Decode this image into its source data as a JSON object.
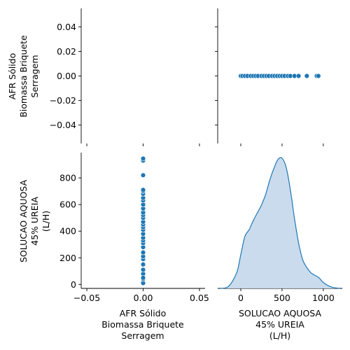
{
  "chart_data": {
    "type": "pairplot",
    "variables": [
      [
        "AFR Sólido",
        "Biomassa Briquete",
        "Serragem"
      ],
      [
        "SOLUCAO AQUOSA",
        "45% UREIA",
        "(L/H)"
      ]
    ],
    "colors": {
      "points": "#1f77b4",
      "kde_fill": "#c6d9ec",
      "kde_line": "#1f77b4",
      "axis": "#000000"
    },
    "panels": [
      {
        "id": "top-left",
        "type": "empty",
        "ylim": [
          -0.055,
          0.055
        ],
        "y_ticks": [
          {
            "v": 0.04,
            "label": "0.04"
          },
          {
            "v": 0.02,
            "label": "0.02"
          },
          {
            "v": 0.0,
            "label": "0.00"
          },
          {
            "v": -0.02,
            "label": "−0.02"
          },
          {
            "v": -0.04,
            "label": "−0.04"
          }
        ]
      },
      {
        "id": "top-right",
        "type": "scatter",
        "xlim": [
          -280,
          1230
        ],
        "ylim": [
          -0.055,
          0.055
        ],
        "x": [
          0,
          20,
          50,
          80,
          120,
          150,
          180,
          210,
          250,
          280,
          310,
          340,
          380,
          410,
          440,
          470,
          500,
          530,
          570,
          600,
          650,
          700,
          800,
          920,
          940
        ],
        "y": [
          0,
          0,
          0,
          0,
          0,
          0,
          0,
          0,
          0,
          0,
          0,
          0,
          0,
          0,
          0,
          0,
          0,
          0,
          0,
          0,
          0,
          0,
          0,
          0,
          0
        ]
      },
      {
        "id": "bottom-left",
        "type": "scatter",
        "xlim": [
          -0.055,
          0.055
        ],
        "ylim": [
          -30,
          990
        ],
        "x_ticks": [
          {
            "v": -0.05,
            "label": "−0.05"
          },
          {
            "v": 0.0,
            "label": "0.00"
          },
          {
            "v": 0.05,
            "label": "0.05"
          }
        ],
        "y_ticks": [
          {
            "v": 800,
            "label": "800"
          },
          {
            "v": 600,
            "label": "600"
          },
          {
            "v": 400,
            "label": "400"
          },
          {
            "v": 200,
            "label": "200"
          },
          {
            "v": 0,
            "label": "0"
          }
        ],
        "x": [
          0,
          0,
          0,
          0,
          0,
          0,
          0,
          0,
          0,
          0,
          0,
          0,
          0,
          0,
          0,
          0,
          0,
          0,
          0,
          0,
          0,
          0,
          0,
          0,
          0,
          0,
          0,
          0,
          0,
          0,
          0
        ],
        "y": [
          10,
          40,
          80,
          110,
          150,
          190,
          210,
          240,
          280,
          310,
          330,
          350,
          380,
          410,
          430,
          450,
          470,
          500,
          520,
          540,
          570,
          600,
          630,
          650,
          680,
          700,
          710,
          820,
          930,
          945,
          50
        ]
      },
      {
        "id": "bottom-right",
        "type": "kde",
        "xlim": [
          -280,
          1230
        ],
        "density": {
          "x": [
            -250,
            -150,
            -50,
            0,
            50,
            100,
            150,
            200,
            250,
            300,
            350,
            400,
            450,
            500,
            550,
            600,
            650,
            700,
            750,
            800,
            850,
            900,
            950,
            1000,
            1100,
            1200
          ],
          "y": [
            0.0,
            0.015,
            0.12,
            0.26,
            0.4,
            0.45,
            0.52,
            0.58,
            0.64,
            0.72,
            0.83,
            0.92,
            0.99,
            1.0,
            0.93,
            0.76,
            0.54,
            0.35,
            0.22,
            0.16,
            0.12,
            0.1,
            0.08,
            0.045,
            0.01,
            0.0
          ]
        },
        "x_ticks": [
          {
            "v": 0,
            "label": "0"
          },
          {
            "v": 500,
            "label": "500"
          },
          {
            "v": 1000,
            "label": "1000"
          }
        ]
      }
    ]
  }
}
